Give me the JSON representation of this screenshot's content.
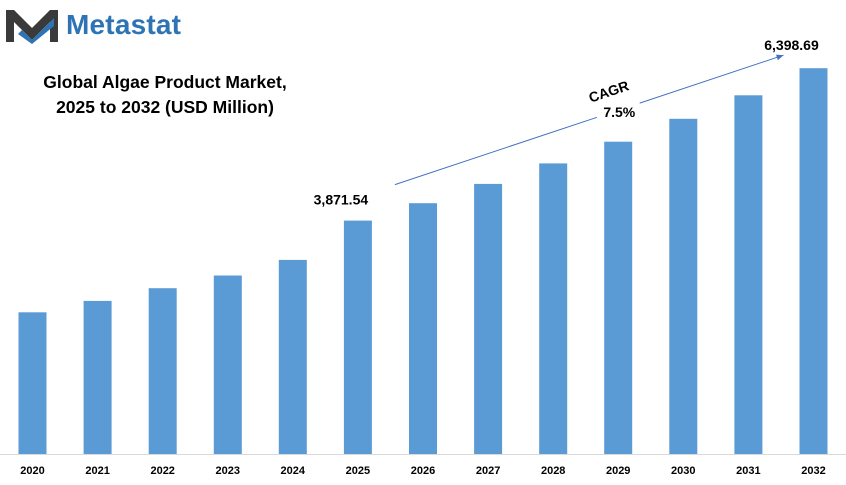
{
  "brand": {
    "name": "Metastat",
    "color": "#2e74b5",
    "logo_icon": "metastat-m-logo-icon"
  },
  "chart_data": {
    "type": "bar",
    "title_lines": [
      "Global Algae Product Market,",
      "2025 to 2032 (USD Million)"
    ],
    "categories": [
      "2020",
      "2021",
      "2022",
      "2023",
      "2024",
      "2025",
      "2026",
      "2027",
      "2028",
      "2029",
      "2030",
      "2031",
      "2032"
    ],
    "values": [
      2350,
      2540,
      2750,
      2960,
      3220,
      3871.54,
      4160,
      4480,
      4820,
      5180,
      5560,
      5950,
      6398.69
    ],
    "data_labels": [
      {
        "category": "2025",
        "text": "3,871.54"
      },
      {
        "category": "2032",
        "text": "6,398.69"
      }
    ],
    "annotation": {
      "label": "CAGR",
      "value": "7.5%",
      "from_category": "2025",
      "to_category": "2032"
    },
    "ylim": [
      0,
      6800
    ],
    "grid": false,
    "legend": "none",
    "bar_color": "#5b9bd5",
    "arrow_color": "#4472c4"
  }
}
